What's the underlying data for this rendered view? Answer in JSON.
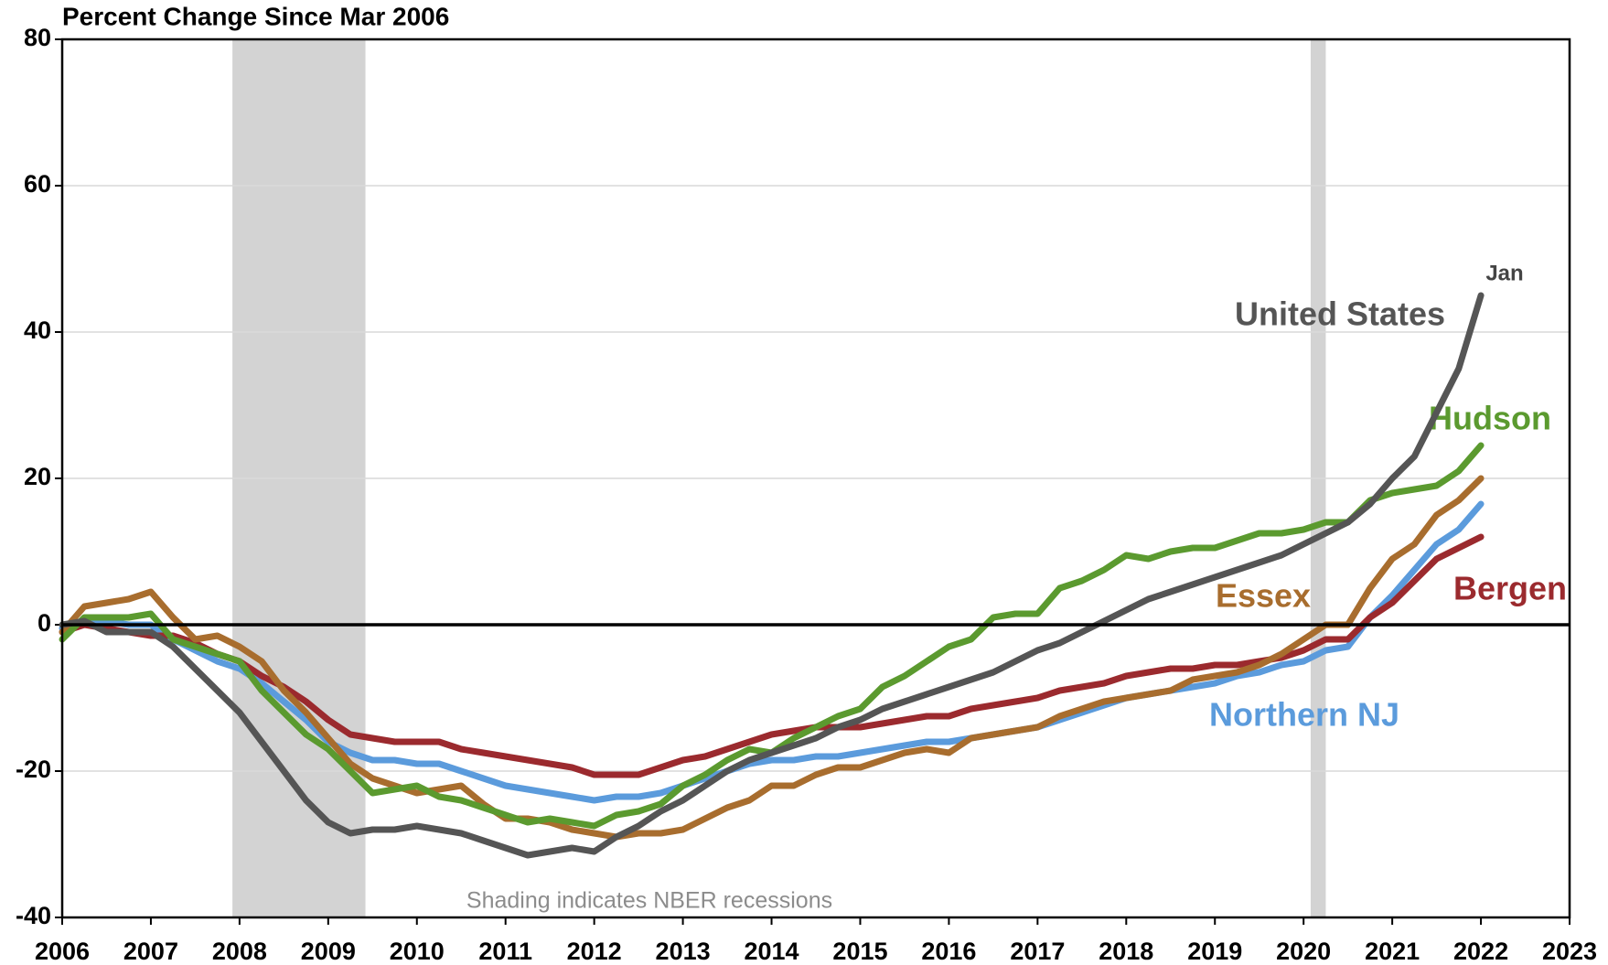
{
  "chart_data": {
    "type": "line",
    "title": "Percent Change Since Mar 2006",
    "annotation": "Jan",
    "note": "Shading indicates NBER recessions",
    "shaded_regions": [
      [
        2007.92,
        2009.42
      ],
      [
        2020.08,
        2020.25
      ]
    ],
    "x": [
      2006,
      2006.25,
      2006.5,
      2006.75,
      2007,
      2007.25,
      2007.5,
      2007.75,
      2008,
      2008.25,
      2008.5,
      2008.75,
      2009,
      2009.25,
      2009.5,
      2009.75,
      2010,
      2010.25,
      2010.5,
      2010.75,
      2011,
      2011.25,
      2011.5,
      2011.75,
      2012,
      2012.25,
      2012.5,
      2012.75,
      2013,
      2013.25,
      2013.5,
      2013.75,
      2014,
      2014.25,
      2014.5,
      2014.75,
      2015,
      2015.25,
      2015.5,
      2015.75,
      2016,
      2016.25,
      2016.5,
      2016.75,
      2017,
      2017.25,
      2017.5,
      2017.75,
      2018,
      2018.25,
      2018.5,
      2018.75,
      2019,
      2019.25,
      2019.5,
      2019.75,
      2020,
      2020.25,
      2020.5,
      2020.75,
      2021,
      2021.25,
      2021.5,
      2021.75,
      2022
    ],
    "series": [
      {
        "name": "Northern NJ",
        "color": "#5b9bdc",
        "values": [
          -0.5,
          0.5,
          0.5,
          0,
          0,
          -2,
          -3.5,
          -5,
          -6,
          -8,
          -10.5,
          -13,
          -16,
          -17.5,
          -18.5,
          -18.5,
          -19,
          -19,
          -20,
          -21,
          -22,
          -22.5,
          -23,
          -23.5,
          -24,
          -23.5,
          -23.5,
          -23,
          -22,
          -21,
          -20,
          -19,
          -18.5,
          -18.5,
          -18,
          -18,
          -17.5,
          -17,
          -16.5,
          -16,
          -16,
          -15.5,
          -15,
          -14.5,
          -14,
          -13,
          -12,
          -11,
          -10,
          -9.5,
          -9,
          -8.5,
          -8,
          -7,
          -6.5,
          -5.5,
          -5,
          -3.5,
          -3,
          1,
          4,
          7.5,
          11,
          13,
          16.5
        ]
      },
      {
        "name": "Bergen",
        "color": "#9b2a2e",
        "values": [
          -1,
          0,
          -0.5,
          -1,
          -1.5,
          -1.5,
          -2.5,
          -4,
          -5,
          -7,
          -8.5,
          -10.5,
          -13,
          -15,
          -15.5,
          -16,
          -16,
          -16,
          -17,
          -17.5,
          -18,
          -18.5,
          -19,
          -19.5,
          -20.5,
          -20.5,
          -20.5,
          -19.5,
          -18.5,
          -18,
          -17,
          -16,
          -15,
          -14.5,
          -14,
          -14,
          -14,
          -13.5,
          -13,
          -12.5,
          -12.5,
          -11.5,
          -11,
          -10.5,
          -10,
          -9,
          -8.5,
          -8,
          -7,
          -6.5,
          -6,
          -6,
          -5.5,
          -5.5,
          -5,
          -4.5,
          -3.5,
          -2,
          -2,
          1,
          3,
          6,
          9,
          10.5,
          12
        ]
      },
      {
        "name": "Essex",
        "color": "#a86d2e",
        "values": [
          -1,
          2.5,
          3,
          3.5,
          4.5,
          1,
          -2,
          -1.5,
          -3,
          -5,
          -9,
          -12,
          -15.5,
          -19,
          -21,
          -22,
          -23,
          -22.5,
          -22,
          -24.5,
          -26.5,
          -26.5,
          -27,
          -28,
          -28.5,
          -29,
          -28.5,
          -28.5,
          -28,
          -26.5,
          -25,
          -24,
          -22,
          -22,
          -20.5,
          -19.5,
          -19.5,
          -18.5,
          -17.5,
          -17,
          -17.5,
          -15.5,
          -15,
          -14.5,
          -14,
          -12.5,
          -11.5,
          -10.5,
          -10,
          -9.5,
          -9,
          -7.5,
          -7,
          -6.5,
          -5.5,
          -4,
          -2,
          0,
          0,
          5,
          9,
          11,
          15,
          17,
          20
        ]
      },
      {
        "name": "Hudson",
        "color": "#5b9a2f",
        "values": [
          -2,
          1,
          1,
          1,
          1.5,
          -2,
          -3,
          -4,
          -5,
          -9,
          -12,
          -15,
          -17,
          -20,
          -23,
          -22.5,
          -22,
          -23.5,
          -24,
          -25,
          -26,
          -27,
          -26.5,
          -27,
          -27.5,
          -26,
          -25.5,
          -24.5,
          -22,
          -20.5,
          -18.5,
          -17,
          -17.5,
          -15.5,
          -14,
          -12.5,
          -11.5,
          -8.5,
          -7,
          -5,
          -3,
          -2,
          1,
          1.5,
          1.5,
          5,
          6,
          7.5,
          9.5,
          9,
          10,
          10.5,
          10.5,
          11.5,
          12.5,
          12.5,
          13,
          14,
          14,
          17,
          18,
          18.5,
          19,
          21,
          24.5
        ]
      },
      {
        "name": "United States",
        "color": "#555555",
        "values": [
          0,
          0.5,
          -1,
          -1,
          -1,
          -3,
          -6,
          -9,
          -12,
          -16,
          -20,
          -24,
          -27,
          -28.5,
          -28,
          -28,
          -27.5,
          -28,
          -28.5,
          -29.5,
          -30.5,
          -31.5,
          -31,
          -30.5,
          -31,
          -29,
          -27.5,
          -25.5,
          -24,
          -22,
          -20,
          -18.5,
          -17.5,
          -16.5,
          -15.5,
          -14,
          -13,
          -11.5,
          -10.5,
          -9.5,
          -8.5,
          -7.5,
          -6.5,
          -5,
          -3.5,
          -2.5,
          -1,
          0.5,
          2,
          3.5,
          4.5,
          5.5,
          6.5,
          7.5,
          8.5,
          9.5,
          11,
          12.5,
          14,
          16.5,
          20,
          23,
          29,
          35,
          45
        ]
      }
    ],
    "xlim": [
      2006,
      2023
    ],
    "xticks": [
      2006,
      2007,
      2008,
      2009,
      2010,
      2011,
      2012,
      2013,
      2014,
      2015,
      2016,
      2017,
      2018,
      2019,
      2020,
      2021,
      2022,
      2023
    ],
    "ylim": [
      -40,
      80
    ],
    "yticks": [
      -40,
      -20,
      0,
      20,
      40,
      60,
      80
    ],
    "grid": true
  }
}
